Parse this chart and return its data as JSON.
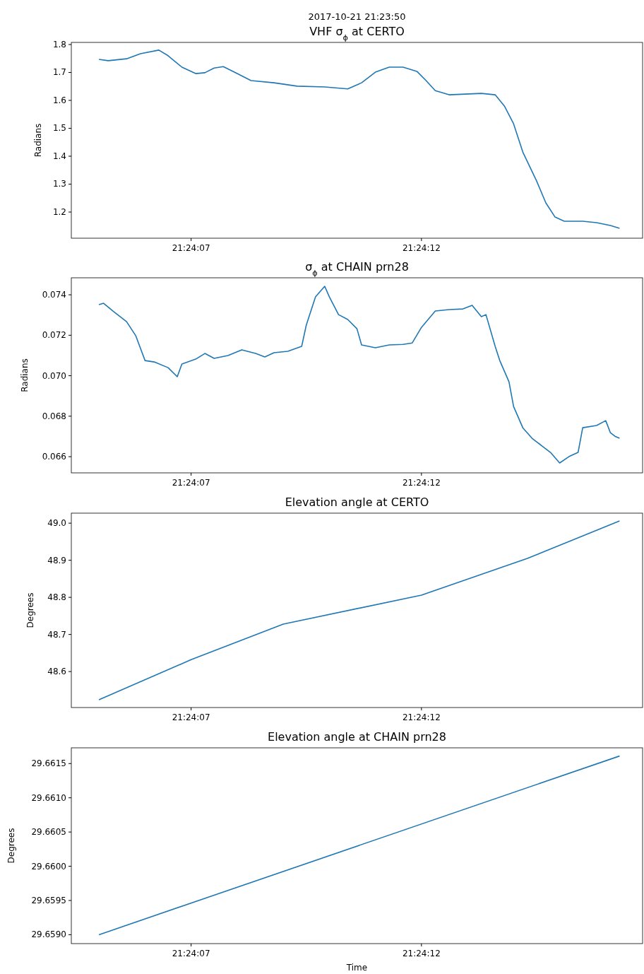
{
  "chart_data": [
    {
      "type": "line",
      "title": "VHF σ$_{ϕ}$ at CERTO",
      "ylabel": "Radians",
      "annotations": [
        "2017-10-21 21:23:50"
      ],
      "xlim": [
        "2017-10-21T21:24:04.4",
        "2017-10-21T21:24:16.8"
      ],
      "xticks": [
        {
          "value": "2017-10-21T21:24:07",
          "label": "21:24:07"
        },
        {
          "value": "2017-10-21T21:24:12",
          "label": "21:24:12"
        }
      ],
      "ylim": [
        1.1063,
        1.8076
      ],
      "yticks": [
        1.2,
        1.3,
        1.4,
        1.5,
        1.6,
        1.7,
        1.8
      ],
      "series": [
        {
          "color": "#1f77b4",
          "x": [
            "2017-10-21T21:24:05.0",
            "2017-10-21T21:24:05.2",
            "2017-10-21T21:24:05.6",
            "2017-10-21T21:24:05.9",
            "2017-10-21T21:24:06.3",
            "2017-10-21T21:24:06.5",
            "2017-10-21T21:24:06.8",
            "2017-10-21T21:24:07.1",
            "2017-10-21T21:24:07.3",
            "2017-10-21T21:24:07.5",
            "2017-10-21T21:24:07.7",
            "2017-10-21T21:24:08.0",
            "2017-10-21T21:24:08.3",
            "2017-10-21T21:24:08.8",
            "2017-10-21T21:24:09.3",
            "2017-10-21T21:24:09.9",
            "2017-10-21T21:24:10.4",
            "2017-10-21T21:24:10.7",
            "2017-10-21T21:24:11.0",
            "2017-10-21T21:24:11.3",
            "2017-10-21T21:24:11.6",
            "2017-10-21T21:24:11.9",
            "2017-10-21T21:24:12.1",
            "2017-10-21T21:24:12.3",
            "2017-10-21T21:24:12.6",
            "2017-10-21T21:24:13.3",
            "2017-10-21T21:24:13.6",
            "2017-10-21T21:24:13.8",
            "2017-10-21T21:24:14.0",
            "2017-10-21T21:24:14.2",
            "2017-10-21T21:24:14.5",
            "2017-10-21T21:24:14.7",
            "2017-10-21T21:24:14.9",
            "2017-10-21T21:24:15.1",
            "2017-10-21T21:24:15.5",
            "2017-10-21T21:24:15.8",
            "2017-10-21T21:24:16.1",
            "2017-10-21T21:24:16.3"
          ],
          "values": [
            1.747,
            1.742,
            1.749,
            1.767,
            1.78,
            1.76,
            1.719,
            1.696,
            1.699,
            1.716,
            1.721,
            1.696,
            1.671,
            1.663,
            1.651,
            1.648,
            1.641,
            1.663,
            1.701,
            1.719,
            1.719,
            1.704,
            1.671,
            1.635,
            1.62,
            1.625,
            1.62,
            1.58,
            1.516,
            1.415,
            1.311,
            1.233,
            1.182,
            1.167,
            1.167,
            1.162,
            1.152,
            1.142
          ]
        }
      ]
    },
    {
      "type": "line",
      "title": "σ$_{ϕ}$ at CHAIN prn28",
      "ylabel": "Radians",
      "xlim": [
        "2017-10-21T21:24:04.4",
        "2017-10-21T21:24:16.8"
      ],
      "xticks": [
        {
          "value": "2017-10-21T21:24:07",
          "label": "21:24:07"
        },
        {
          "value": "2017-10-21T21:24:12",
          "label": "21:24:12"
        }
      ],
      "ylim": [
        0.0652,
        0.07484
      ],
      "yticks": [
        {
          "value": 0.066,
          "label": "0.066"
        },
        {
          "value": 0.068,
          "label": "0.068"
        },
        {
          "value": 0.07,
          "label": "0.070"
        },
        {
          "value": 0.072,
          "label": "0.072"
        },
        {
          "value": 0.074,
          "label": "0.074"
        }
      ],
      "series": [
        {
          "color": "#1f77b4",
          "x": [
            "2017-10-21T21:24:05.0",
            "2017-10-21T21:24:05.1",
            "2017-10-21T21:24:05.3",
            "2017-10-21T21:24:05.6",
            "2017-10-21T21:24:05.8",
            "2017-10-21T21:24:06.0",
            "2017-10-21T21:24:06.2",
            "2017-10-21T21:24:06.5",
            "2017-10-21T21:24:06.7",
            "2017-10-21T21:24:06.8",
            "2017-10-21T21:24:07.1",
            "2017-10-21T21:24:07.3",
            "2017-10-21T21:24:07.5",
            "2017-10-21T21:24:07.8",
            "2017-10-21T21:24:08.1",
            "2017-10-21T21:24:08.4",
            "2017-10-21T21:24:08.6",
            "2017-10-21T21:24:08.8",
            "2017-10-21T21:24:09.1",
            "2017-10-21T21:24:09.4",
            "2017-10-21T21:24:09.5",
            "2017-10-21T21:24:09.7",
            "2017-10-21T21:24:09.9",
            "2017-10-21T21:24:10.0",
            "2017-10-21T21:24:10.2",
            "2017-10-21T21:24:10.4",
            "2017-10-21T21:24:10.6",
            "2017-10-21T21:24:10.7",
            "2017-10-21T21:24:11.0",
            "2017-10-21T21:24:11.3",
            "2017-10-21T21:24:11.6",
            "2017-10-21T21:24:11.8",
            "2017-10-21T21:24:12.0",
            "2017-10-21T21:24:12.3",
            "2017-10-21T21:24:12.6",
            "2017-10-21T21:24:12.9",
            "2017-10-21T21:24:13.1",
            "2017-10-21T21:24:13.3",
            "2017-10-21T21:24:13.4",
            "2017-10-21T21:24:13.6",
            "2017-10-21T21:24:13.7",
            "2017-10-21T21:24:13.9",
            "2017-10-21T21:24:14.0",
            "2017-10-21T21:24:14.2",
            "2017-10-21T21:24:14.4",
            "2017-10-21T21:24:14.6",
            "2017-10-21T21:24:14.8",
            "2017-10-21T21:24:15.0",
            "2017-10-21T21:24:15.2",
            "2017-10-21T21:24:15.4",
            "2017-10-21T21:24:15.5",
            "2017-10-21T21:24:15.8",
            "2017-10-21T21:24:16.0",
            "2017-10-21T21:24:16.1",
            "2017-10-21T21:24:16.2",
            "2017-10-21T21:24:16.3"
          ],
          "values": [
            0.07351,
            0.07358,
            0.0732,
            0.07267,
            0.07197,
            0.07075,
            0.07068,
            0.0704,
            0.06995,
            0.07058,
            0.07082,
            0.0711,
            0.07086,
            0.071,
            0.07128,
            0.0711,
            0.07093,
            0.07114,
            0.07121,
            0.07145,
            0.0725,
            0.0739,
            0.07442,
            0.0739,
            0.07302,
            0.07278,
            0.07232,
            0.07152,
            0.07138,
            0.07152,
            0.07155,
            0.07162,
            0.07239,
            0.0732,
            0.07327,
            0.0733,
            0.07348,
            0.07292,
            0.07302,
            0.07145,
            0.07075,
            0.0697,
            0.06848,
            0.06743,
            0.06691,
            0.06656,
            0.06621,
            0.06569,
            0.066,
            0.06621,
            0.06743,
            0.06754,
            0.06778,
            0.06719,
            0.06701,
            0.06691
          ]
        }
      ]
    },
    {
      "type": "line",
      "title": "Elevation angle at CERTO",
      "ylabel": "Degrees",
      "xlim": [
        "2017-10-21T21:24:04.4",
        "2017-10-21T21:24:16.8"
      ],
      "xticks": [
        {
          "value": "2017-10-21T21:24:07",
          "label": "21:24:07"
        },
        {
          "value": "2017-10-21T21:24:12",
          "label": "21:24:12"
        }
      ],
      "ylim": [
        48.503,
        49.027
      ],
      "yticks": [
        48.6,
        48.7,
        48.8,
        48.9,
        {
          "value": 49.0,
          "label": "49.0"
        }
      ],
      "series": [
        {
          "color": "#1f77b4",
          "x": [
            "2017-10-21T21:24:05.0",
            "2017-10-21T21:24:07.0",
            "2017-10-21T21:24:09.0",
            "2017-10-21T21:24:12.0",
            "2017-10-21T21:24:14.3",
            "2017-10-21T21:24:16.3"
          ],
          "values": [
            48.524,
            48.632,
            48.728,
            48.806,
            48.905,
            49.006
          ]
        }
      ]
    },
    {
      "type": "line",
      "title": "Elevation angle at CHAIN prn28",
      "ylabel": "Degrees",
      "xlabel": "Time",
      "xlim": [
        "2017-10-21T21:24:04.4",
        "2017-10-21T21:24:16.8"
      ],
      "xticks": [
        {
          "value": "2017-10-21T21:24:07",
          "label": "21:24:07"
        },
        {
          "value": "2017-10-21T21:24:12",
          "label": "21:24:12"
        }
      ],
      "ylim": [
        29.65887,
        29.66173
      ],
      "yticks": [
        {
          "value": 29.659,
          "label": "29.6590"
        },
        29.6595,
        {
          "value": 29.66,
          "label": "29.6600"
        },
        29.6605,
        {
          "value": 29.661,
          "label": "29.6610"
        },
        29.6615
      ],
      "series": [
        {
          "color": "#1f77b4",
          "x": [
            "2017-10-21T21:24:05.0",
            "2017-10-21T21:24:16.3"
          ],
          "values": [
            29.659,
            29.66161
          ]
        }
      ]
    }
  ]
}
